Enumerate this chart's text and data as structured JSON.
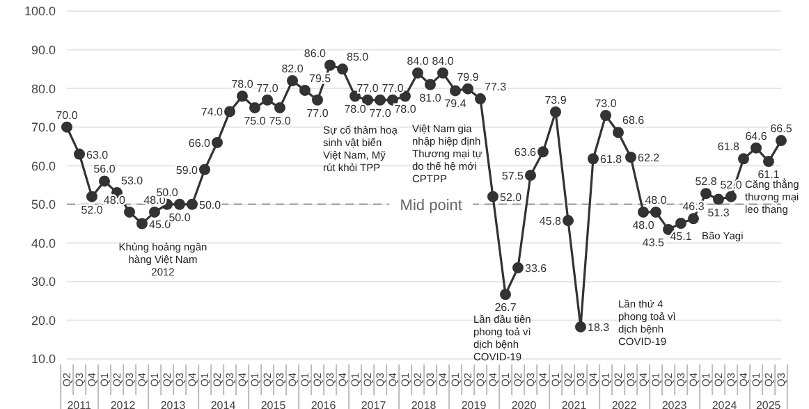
{
  "chart_data": {
    "type": "line",
    "categories": [
      "Q2",
      "Q3",
      "Q4",
      "Q1",
      "Q2",
      "Q3",
      "Q4",
      "Q1",
      "Q2",
      "Q3",
      "Q4",
      "Q1",
      "Q2",
      "Q3",
      "Q4",
      "Q1",
      "Q2",
      "Q3",
      "Q4",
      "Q1",
      "Q2",
      "Q3",
      "Q4",
      "Q1",
      "Q2",
      "Q3",
      "Q4",
      "Q1",
      "Q2",
      "Q3",
      "Q4",
      "Q1",
      "Q2",
      "Q3",
      "Q4",
      "Q1",
      "Q2",
      "Q3",
      "Q4",
      "Q1",
      "Q2",
      "Q3",
      "Q4",
      "Q1",
      "Q2",
      "Q3",
      "Q4",
      "Q1",
      "Q2",
      "Q3",
      "Q4",
      "Q1",
      "Q2",
      "Q3",
      "Q4",
      "Q1",
      "Q2",
      "Q3"
    ],
    "series": [
      {
        "color": "#333333",
        "values": [
          70.0,
          63.0,
          52.0,
          56.0,
          53.0,
          48.0,
          45.0,
          48.0,
          50.0,
          50.0,
          50.0,
          59.0,
          66.0,
          74.0,
          78.0,
          75.0,
          77.0,
          75.0,
          82.0,
          79.5,
          77.0,
          86.0,
          85.0,
          78.0,
          77.0,
          77.0,
          77.0,
          78.0,
          84.0,
          81.0,
          84.0,
          79.4,
          79.9,
          77.3,
          52.0,
          26.7,
          33.6,
          57.5,
          63.6,
          73.9,
          45.8,
          18.3,
          61.8,
          73.0,
          68.6,
          62.2,
          48.0,
          48.0,
          43.5,
          45.1,
          46.3,
          52.8,
          51.3,
          52.0,
          61.8,
          64.6,
          61.1,
          66.5
        ]
      }
    ],
    "ylim": [
      10,
      100
    ],
    "yticks": [
      {
        "value": 10,
        "label": "10.0"
      },
      {
        "value": 20,
        "label": "20.0"
      },
      {
        "value": 30,
        "label": "30.0"
      },
      {
        "value": 40,
        "label": "40.0"
      },
      {
        "value": 50,
        "label": "50.0"
      },
      {
        "value": 60,
        "label": "60.0"
      },
      {
        "value": 70,
        "label": "70.0"
      },
      {
        "value": 80,
        "label": "80.0"
      },
      {
        "value": 90,
        "label": "90.0"
      },
      {
        "value": 100,
        "label": "100.0"
      }
    ],
    "value_labels": [
      "70.0",
      "63.0",
      "52.0",
      "56.0",
      "53.0",
      "48.0",
      "45.0",
      "48.0",
      "50.0",
      "50.0",
      "50.0",
      "59.0",
      "66.0",
      "74.0",
      "78.0",
      "75.0",
      "77.0",
      "75.0",
      "82.0",
      "79.5",
      "77.0",
      "86.0",
      "85.0",
      "78.0",
      "77.0",
      "77.0",
      "77.0",
      "78.0",
      "84.0",
      "81.0",
      "84.0",
      "79.4",
      "79.9",
      "77.3",
      "52.0",
      "26.7",
      "33.6",
      "57.5",
      "63.6",
      "73.9",
      "45.8",
      "18.3",
      "61.8",
      "73.0",
      "68.6",
      "62.2",
      "48.0",
      "48.0",
      "43.5",
      "45.1",
      "46.3",
      "52.8",
      "51.3",
      "52.0",
      "61.8",
      "64.6",
      "61.1",
      "66.5"
    ],
    "grid": "y",
    "marker": "circle",
    "line_style": "solid",
    "ref_lines": [
      {
        "axis": "y",
        "value": 50,
        "label": "Mid point",
        "color": "#aaaaaa",
        "line_style": "dashed"
      }
    ],
    "annotations": [
      "2011",
      "2012",
      "2013",
      "2014",
      "2015",
      "2016",
      "2017",
      "2018",
      "2019",
      "2020",
      "2021",
      "2022",
      "2023",
      "2024",
      "2025",
      "Khủng hoảng ngân hàng Việt Nam 2012",
      "Sự cố thảm hoạ sinh vật biển Việt Nam, Mỹ rút khỏi TPP",
      "Việt Nam gia nhập hiệp định Thương mại tự do thế hệ mới CPTPP",
      "Lần đầu tiên phong toả vì dịch bệnh COVID-19",
      "Lần thứ 4 phong toả vì dịch bệnh COVID-19",
      "Bão Yagi",
      "Căng thẳng thương mại leo thang"
    ]
  }
}
